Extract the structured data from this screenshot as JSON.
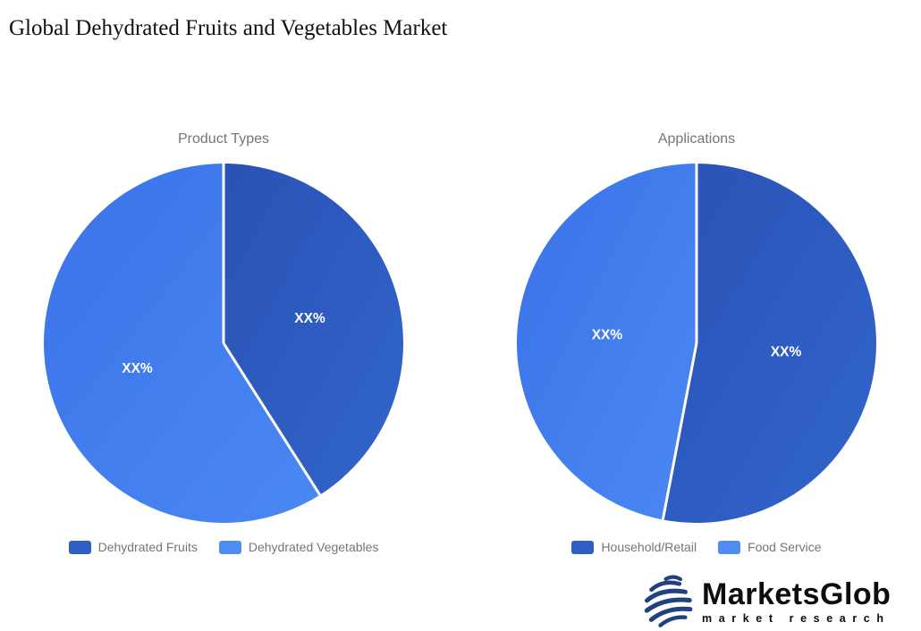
{
  "page": {
    "title": "Global Dehydrated Fruits and Vegetables Market",
    "background": "#ffffff"
  },
  "chart_data": [
    {
      "type": "pie",
      "title": "Product Types",
      "categories": [
        "Dehydrated Fruits",
        "Dehydrated Vegetables"
      ],
      "values_pct_est": [
        41,
        59
      ],
      "data_labels": [
        "XX%",
        "XX%"
      ],
      "start_angle_deg": 0,
      "direction": "clockwise",
      "legend_position": "bottom",
      "slice_gradients": [
        {
          "from": "#2a52b5",
          "to": "#3165cb"
        },
        {
          "from": "#3a73e8",
          "to": "#4a88f3"
        }
      ],
      "legend_colors": [
        "#2d5fc4",
        "#4f8df5"
      ]
    },
    {
      "type": "pie",
      "title": "Applications",
      "categories": [
        "Household/Retail",
        "Food Service"
      ],
      "values_pct_est": [
        53,
        47
      ],
      "data_labels": [
        "XX%",
        "XX%"
      ],
      "start_angle_deg": 0,
      "direction": "clockwise",
      "legend_position": "bottom",
      "slice_gradients": [
        {
          "from": "#2a52b5",
          "to": "#3165cb"
        },
        {
          "from": "#3a73e8",
          "to": "#4a88f3"
        }
      ],
      "legend_colors": [
        "#2d5fc4",
        "#4f8df5"
      ]
    }
  ],
  "branding": {
    "logo_name": "MarketsGlob",
    "logo_sub": "market research",
    "globe_color": "#21417f"
  },
  "colors": {
    "title_text": "#111111",
    "chart_title_text": "#757575",
    "legend_text": "#757575",
    "pie_label_text": "#ffffff",
    "divider_line": "#ffffff"
  }
}
